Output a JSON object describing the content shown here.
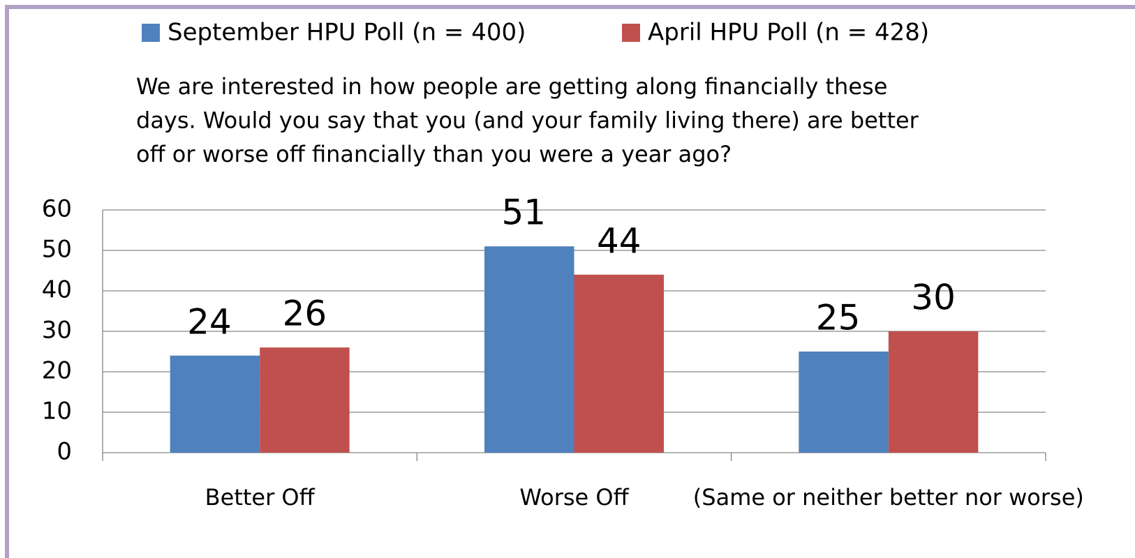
{
  "chart_data": {
    "type": "bar",
    "subtitle": [
      "We are interested in how people are getting along financially these",
      "days.  Would you say that you (and your family living there) are better",
      "off or worse off financially than you were a year ago?"
    ],
    "categories": [
      "Better Off",
      "Worse Off",
      "(Same or neither better nor worse)"
    ],
    "series": [
      {
        "name": "September HPU Poll (n = 400)",
        "color": "#4f81bd",
        "values": [
          24,
          51,
          25
        ]
      },
      {
        "name": "April HPU Poll (n = 428)",
        "color": "#c0504d",
        "values": [
          26,
          44,
          30
        ]
      }
    ],
    "ylim": [
      0,
      60
    ],
    "yticks": [
      0,
      10,
      20,
      30,
      40,
      50,
      60
    ],
    "grid": true,
    "legend": "top"
  }
}
